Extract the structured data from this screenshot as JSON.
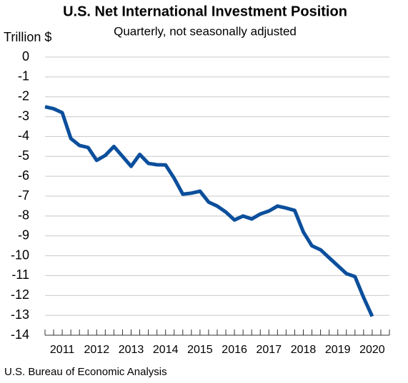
{
  "chart_data": {
    "type": "line",
    "title": "U.S. Net International Investment Position",
    "subtitle": "Quarterly, not seasonally adjusted",
    "y_label": "Trillion $",
    "source": "U.S. Bureau of Economic Analysis",
    "x": [
      2011,
      2011.25,
      2011.5,
      2011.75,
      2012,
      2012.25,
      2012.5,
      2012.75,
      2013,
      2013.25,
      2013.5,
      2013.75,
      2014,
      2014.25,
      2014.5,
      2014.75,
      2015,
      2015.25,
      2015.5,
      2015.75,
      2016,
      2016.25,
      2016.5,
      2016.75,
      2017,
      2017.25,
      2017.5,
      2017.75,
      2018,
      2018.25,
      2018.5,
      2018.75,
      2019,
      2019.25,
      2019.5,
      2019.75,
      2020,
      2020.25,
      2020.5
    ],
    "series": [
      {
        "name": "Net international investment position",
        "color": "#0b4f9c",
        "values": [
          -2.5,
          -2.6,
          -2.8,
          -4.1,
          -4.45,
          -4.55,
          -5.2,
          -4.95,
          -4.5,
          -5.0,
          -5.5,
          -4.9,
          -5.35,
          -5.42,
          -5.43,
          -6.1,
          -6.9,
          -6.85,
          -6.75,
          -7.3,
          -7.5,
          -7.8,
          -8.2,
          -8.0,
          -8.15,
          -7.9,
          -7.75,
          -7.5,
          -7.6,
          -7.72,
          -8.8,
          -9.5,
          -9.7,
          -10.1,
          -10.5,
          -10.9,
          -11.05,
          -12.1,
          -13.05
        ]
      }
    ],
    "xlim": [
      2011,
      2021
    ],
    "xticks": [
      {
        "value": 2011.5,
        "label": "2011"
      },
      {
        "value": 2012.5,
        "label": "2012"
      },
      {
        "value": 2013.5,
        "label": "2013"
      },
      {
        "value": 2014.5,
        "label": "2014"
      },
      {
        "value": 2015.5,
        "label": "2015"
      },
      {
        "value": 2016.5,
        "label": "2016"
      },
      {
        "value": 2017.5,
        "label": "2017"
      },
      {
        "value": 2018.5,
        "label": "2018"
      },
      {
        "value": 2019.5,
        "label": "2019"
      },
      {
        "value": 2020.5,
        "label": "2020"
      }
    ],
    "ylim": [
      -14,
      0
    ],
    "yticks": [
      0,
      -1,
      -2,
      -3,
      -4,
      -5,
      -6,
      -7,
      -8,
      -9,
      -10,
      -11,
      -12,
      -13,
      -14
    ],
    "grid": true
  }
}
